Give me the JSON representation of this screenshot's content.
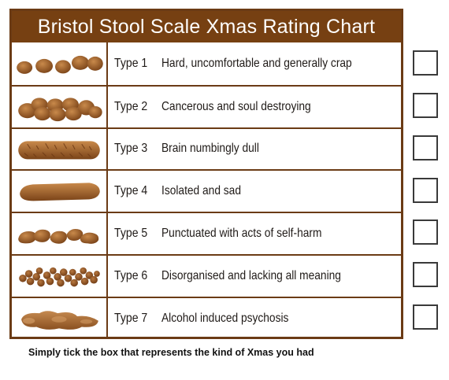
{
  "title": "Bristol Stool Scale Xmas Rating Chart",
  "rows": [
    {
      "type": "Type 1",
      "description": "Hard, uncomfortable and generally crap",
      "icon": "separate-hard-lumps-icon",
      "checked": false
    },
    {
      "type": "Type 2",
      "description": "Cancerous and soul destroying",
      "icon": "lumpy-sausage-icon",
      "checked": false
    },
    {
      "type": "Type 3",
      "description": "Brain numbingly dull",
      "icon": "cracked-sausage-icon",
      "checked": false
    },
    {
      "type": "Type 4",
      "description": "Isolated and sad",
      "icon": "smooth-sausage-icon",
      "checked": false
    },
    {
      "type": "Type 5",
      "description": "Punctuated with acts of self-harm",
      "icon": "soft-blobs-icon",
      "checked": false
    },
    {
      "type": "Type 6",
      "description": "Disorganised and lacking all meaning",
      "icon": "mushy-pieces-icon",
      "checked": false
    },
    {
      "type": "Type 7",
      "description": "Alcohol induced psychosis",
      "icon": "watery-puddle-icon",
      "checked": false
    }
  ],
  "footer": "Simply tick the box that represents the kind of Xmas you had",
  "colors": {
    "brand": "#764012",
    "stool": "#a0602a",
    "stool_dark": "#6e3a14"
  }
}
